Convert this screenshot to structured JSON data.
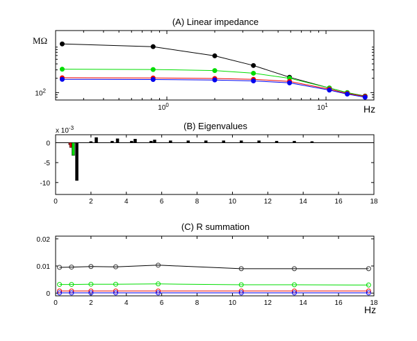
{
  "chart_data": [
    {
      "type": "line",
      "title": "(A) Linear impedance",
      "xscale": "log",
      "xlim": [
        0.2,
        20
      ],
      "yscale": "log",
      "ylim": [
        70,
        2000
      ],
      "xticks": [
        {
          "value": 1,
          "label": "10",
          "exp": "0"
        },
        {
          "value": 10,
          "label": "10",
          "exp": "1"
        }
      ],
      "yticks": [
        {
          "value": 100,
          "label": "10",
          "exp": "2"
        }
      ],
      "ylabel": "MΩ",
      "xlabel": "Hz",
      "x": [
        0.22,
        0.82,
        2.0,
        3.5,
        5.9,
        10.5,
        13.6,
        17.6
      ],
      "series": [
        {
          "name": "black",
          "color": "#000000",
          "values": [
            1050,
            920,
            590,
            370,
            210,
            125,
            100,
            85
          ]
        },
        {
          "name": "green",
          "color": "#00dd00",
          "values": [
            310,
            305,
            290,
            255,
            200,
            125,
            100,
            84
          ]
        },
        {
          "name": "red",
          "color": "#ee0000",
          "values": [
            205,
            203,
            198,
            190,
            172,
            118,
            96,
            83
          ]
        },
        {
          "name": "blue",
          "color": "#0000ee",
          "values": [
            190,
            188,
            184,
            176,
            160,
            113,
            93,
            80
          ]
        }
      ]
    },
    {
      "type": "bar",
      "title": "(B) Eigenvalues",
      "xlim": [
        0,
        18
      ],
      "ylim": [
        -13,
        2
      ],
      "yscale_label": "x 10",
      "yscale_exp": "-3",
      "xticks": [
        0,
        2,
        4,
        6,
        8,
        10,
        12,
        14,
        16,
        18
      ],
      "yticks": [
        0,
        -5,
        -10
      ],
      "series": [
        {
          "name": "red",
          "color": "#ee0000",
          "points": [
            {
              "x": 0.8,
              "y": -0.5
            },
            {
              "x": 0.85,
              "y": -1.2
            }
          ]
        },
        {
          "name": "green",
          "color": "#00dd00",
          "points": [
            {
              "x": 1.0,
              "y": -3.2
            }
          ]
        },
        {
          "name": "black",
          "color": "#000000",
          "points": [
            {
              "x": 1.2,
              "y": -9.5
            },
            {
              "x": 2.0,
              "y": 0.3
            },
            {
              "x": 2.3,
              "y": 1.3
            },
            {
              "x": 3.2,
              "y": 0.4
            },
            {
              "x": 3.5,
              "y": 1.0
            },
            {
              "x": 4.3,
              "y": 0.4
            },
            {
              "x": 4.5,
              "y": 0.9
            },
            {
              "x": 5.4,
              "y": 0.4
            },
            {
              "x": 5.6,
              "y": 0.7
            },
            {
              "x": 6.5,
              "y": 0.5
            },
            {
              "x": 7.5,
              "y": 0.5
            },
            {
              "x": 8.5,
              "y": 0.5
            },
            {
              "x": 9.5,
              "y": 0.5
            },
            {
              "x": 10.5,
              "y": 0.5
            },
            {
              "x": 11.5,
              "y": 0.5
            },
            {
              "x": 12.5,
              "y": 0.4
            },
            {
              "x": 13.5,
              "y": 0.4
            },
            {
              "x": 14.5,
              "y": 0.3
            }
          ]
        }
      ]
    },
    {
      "type": "line",
      "title": "(C) R summation",
      "xlim": [
        0,
        18
      ],
      "ylim": [
        -0.001,
        0.021
      ],
      "xticks": [
        0,
        2,
        4,
        6,
        8,
        10,
        12,
        14,
        16,
        18
      ],
      "yticks": [
        {
          "value": 0,
          "label": "0"
        },
        {
          "value": 0.01,
          "label": "0.01"
        },
        {
          "value": 0.02,
          "label": "0.02"
        }
      ],
      "xlabel": "Hz",
      "x": [
        0.22,
        0.9,
        2.0,
        3.4,
        5.8,
        10.5,
        13.5,
        17.7
      ],
      "series": [
        {
          "name": "black",
          "color": "#000000",
          "values": [
            0.0095,
            0.0096,
            0.0098,
            0.0097,
            0.0103,
            0.009,
            0.009,
            0.009
          ]
        },
        {
          "name": "green",
          "color": "#00dd00",
          "values": [
            0.0032,
            0.0032,
            0.0033,
            0.0033,
            0.0034,
            0.0031,
            0.0031,
            0.003
          ]
        },
        {
          "name": "red",
          "color": "#ee0000",
          "values": [
            0.0008,
            0.0008,
            0.0008,
            0.0008,
            0.0008,
            0.0008,
            0.0008,
            0.0008
          ]
        },
        {
          "name": "blue",
          "color": "#0000ee",
          "values": [
            0.0001,
            0.0001,
            0.0001,
            0.0001,
            0.0001,
            0.0001,
            0.0001,
            0.0001
          ]
        }
      ]
    }
  ]
}
